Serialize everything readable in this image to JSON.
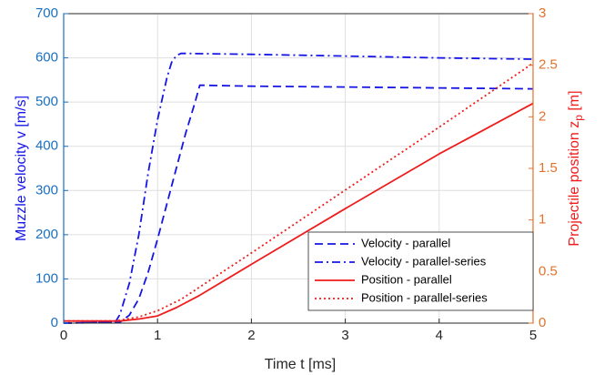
{
  "chart_data": {
    "type": "line",
    "title": "",
    "xlabel": "Time t [ms]",
    "ylabel_left": "Muzzle velocity v [m/s]",
    "ylabel_right": "Projectile position z_p [m]",
    "xlim": [
      0,
      5
    ],
    "ylim_left": [
      0,
      700
    ],
    "ylim_right": [
      0,
      3
    ],
    "xticks": [
      "0",
      "1",
      "2",
      "3",
      "4",
      "5"
    ],
    "yticks_left": [
      "0",
      "100",
      "200",
      "300",
      "400",
      "500",
      "600",
      "700"
    ],
    "yticks_right": [
      "0",
      "0.5",
      "1",
      "1.5",
      "2",
      "2.5",
      "3"
    ],
    "grid": true,
    "legend_position": "bottom-right",
    "colors": {
      "left_axis": "#1a6fc0",
      "right_axis": "#e2722a",
      "velocity": "#1515e6",
      "position": "#ee1c1c"
    },
    "series": [
      {
        "name": "Velocity - parallel",
        "axis": "left",
        "style": "dashed",
        "x": [
          0,
          0.6,
          0.7,
          0.8,
          0.9,
          1.0,
          1.1,
          1.2,
          1.3,
          1.4,
          1.45,
          1.5,
          2,
          3,
          4,
          5
        ],
        "y": [
          0,
          2,
          18,
          55,
          115,
          190,
          270,
          350,
          430,
          500,
          538,
          538,
          536,
          534,
          532,
          530
        ]
      },
      {
        "name": "Velocity - parallel-series",
        "axis": "left",
        "style": "dashdot",
        "x": [
          0,
          0.55,
          0.6,
          0.7,
          0.8,
          0.9,
          1.0,
          1.1,
          1.15,
          1.2,
          1.25,
          1.3,
          2,
          3,
          4,
          5
        ],
        "y": [
          0,
          2,
          20,
          90,
          200,
          340,
          460,
          555,
          590,
          605,
          610,
          610,
          608,
          604,
          600,
          597
        ]
      },
      {
        "name": "Position - parallel",
        "axis": "right",
        "style": "solid",
        "x": [
          0,
          0.6,
          0.8,
          1.0,
          1.2,
          1.45,
          2,
          3,
          4,
          5
        ],
        "y": [
          0.02,
          0.02,
          0.04,
          0.07,
          0.15,
          0.27,
          0.57,
          1.11,
          1.64,
          2.13
        ]
      },
      {
        "name": "Position - parallel-series",
        "axis": "right",
        "style": "dotted",
        "x": [
          0,
          0.55,
          0.8,
          1.0,
          1.25,
          1.5,
          2,
          3,
          4,
          5
        ],
        "y": [
          0.02,
          0.02,
          0.06,
          0.12,
          0.23,
          0.38,
          0.68,
          1.29,
          1.9,
          2.52
        ]
      }
    ]
  }
}
